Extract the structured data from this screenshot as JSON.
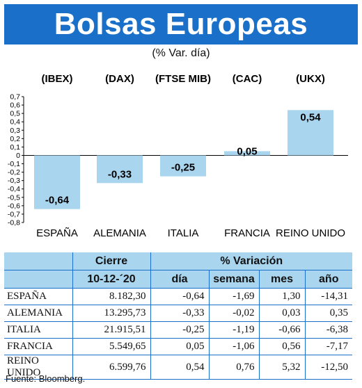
{
  "header": {
    "title": "Bolsas Europeas",
    "subtitle": "(% Var. día)"
  },
  "chart_data": {
    "type": "bar",
    "index_labels": [
      "(IBEX)",
      "(DAX)",
      "(FTSE MIB)",
      "(CAC)",
      "(UKX)"
    ],
    "categories": [
      "ESPAÑA",
      "ALEMANIA",
      "ITALIA",
      "FRANCIA",
      "REINO UNIDO"
    ],
    "values": [
      -0.64,
      -0.33,
      -0.25,
      0.05,
      0.54
    ],
    "value_labels": [
      "-0,64",
      "-0,33",
      "-0,25",
      "0,05",
      "0,54"
    ],
    "ylim": [
      -0.8,
      0.7
    ],
    "yticks": [
      "0,7",
      "0,6",
      "0,5",
      "0,4",
      "0,3",
      "0,2",
      "0,1",
      "0",
      "-0,1",
      "-0,2",
      "-0,3",
      "-0,4",
      "-0,5",
      "-0,6",
      "-0,7",
      "-0,8"
    ],
    "bar_color": "#a9d5ef"
  },
  "table": {
    "group_headers": [
      "Cierre",
      "% Variación"
    ],
    "date_header": "10-12-´20",
    "columns": [
      "día",
      "semana",
      "mes",
      "año"
    ],
    "rows": [
      {
        "name": "ESPAÑA",
        "cierre": "8.182,30",
        "dia": "-0,64",
        "semana": "-1,69",
        "mes": "1,30",
        "ano": "-14,31"
      },
      {
        "name": "ALEMANIA",
        "cierre": "13.295,73",
        "dia": "-0,33",
        "semana": "-0,02",
        "mes": "0,03",
        "ano": "0,35"
      },
      {
        "name": "ITALIA",
        "cierre": "21.915,51",
        "dia": "-0,25",
        "semana": "-1,19",
        "mes": "-0,66",
        "ano": "-6,38"
      },
      {
        "name": "FRANCIA",
        "cierre": "5.549,65",
        "dia": "0,05",
        "semana": "-1,06",
        "mes": "0,56",
        "ano": "-7,17"
      },
      {
        "name": "REINO UNIDO",
        "cierre": "6.599,76",
        "dia": "0,54",
        "semana": "0,76",
        "mes": "5,32",
        "ano": "-12,50"
      }
    ]
  },
  "footer": {
    "source": "Fuente: Bloomberg."
  },
  "colors": {
    "accent": "#1a6fc9",
    "light": "#a9d5ef"
  }
}
